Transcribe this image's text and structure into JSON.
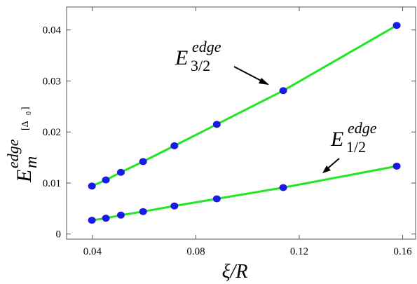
{
  "chart_data": {
    "type": "line",
    "xlabel": "ξ/R",
    "ylabel": {
      "main": "E",
      "sup": "edge",
      "sub": "m",
      "unit": "[Δ",
      "unit_sub": "0",
      "unit_close": "]"
    },
    "xlim": [
      0.03,
      0.165
    ],
    "ylim": [
      -0.001,
      0.0445
    ],
    "xticks": [
      {
        "value": 0.04,
        "label": "0.04"
      },
      {
        "value": 0.08,
        "label": "0.08"
      },
      {
        "value": 0.12,
        "label": "0.12"
      },
      {
        "value": 0.16,
        "label": "0.16"
      }
    ],
    "yticks": [
      {
        "value": 0,
        "label": "0"
      },
      {
        "value": 0.01,
        "label": "0.01"
      },
      {
        "value": 0.02,
        "label": "0.02"
      },
      {
        "value": 0.03,
        "label": "0.03"
      },
      {
        "value": 0.04,
        "label": "0.04"
      }
    ],
    "grid": false,
    "colors": {
      "line": "#22e622",
      "marker": "#1a1ae6"
    },
    "series": [
      {
        "label_main": "E",
        "label_sup": "edge",
        "label_sub": "3/2",
        "x": [
          0.0398,
          0.0452,
          0.051,
          0.0596,
          0.0717,
          0.0881,
          0.1138,
          0.1577
        ],
        "y": [
          0.0094,
          0.0106,
          0.0121,
          0.0142,
          0.0173,
          0.0215,
          0.0281,
          0.0409
        ]
      },
      {
        "label_main": "E",
        "label_sup": "edge",
        "label_sub": "1/2",
        "x": [
          0.0398,
          0.0452,
          0.051,
          0.0596,
          0.0717,
          0.0881,
          0.1138,
          0.1577
        ],
        "y": [
          0.0027,
          0.0031,
          0.0037,
          0.0044,
          0.0055,
          0.0069,
          0.0091,
          0.0133
        ]
      }
    ]
  }
}
